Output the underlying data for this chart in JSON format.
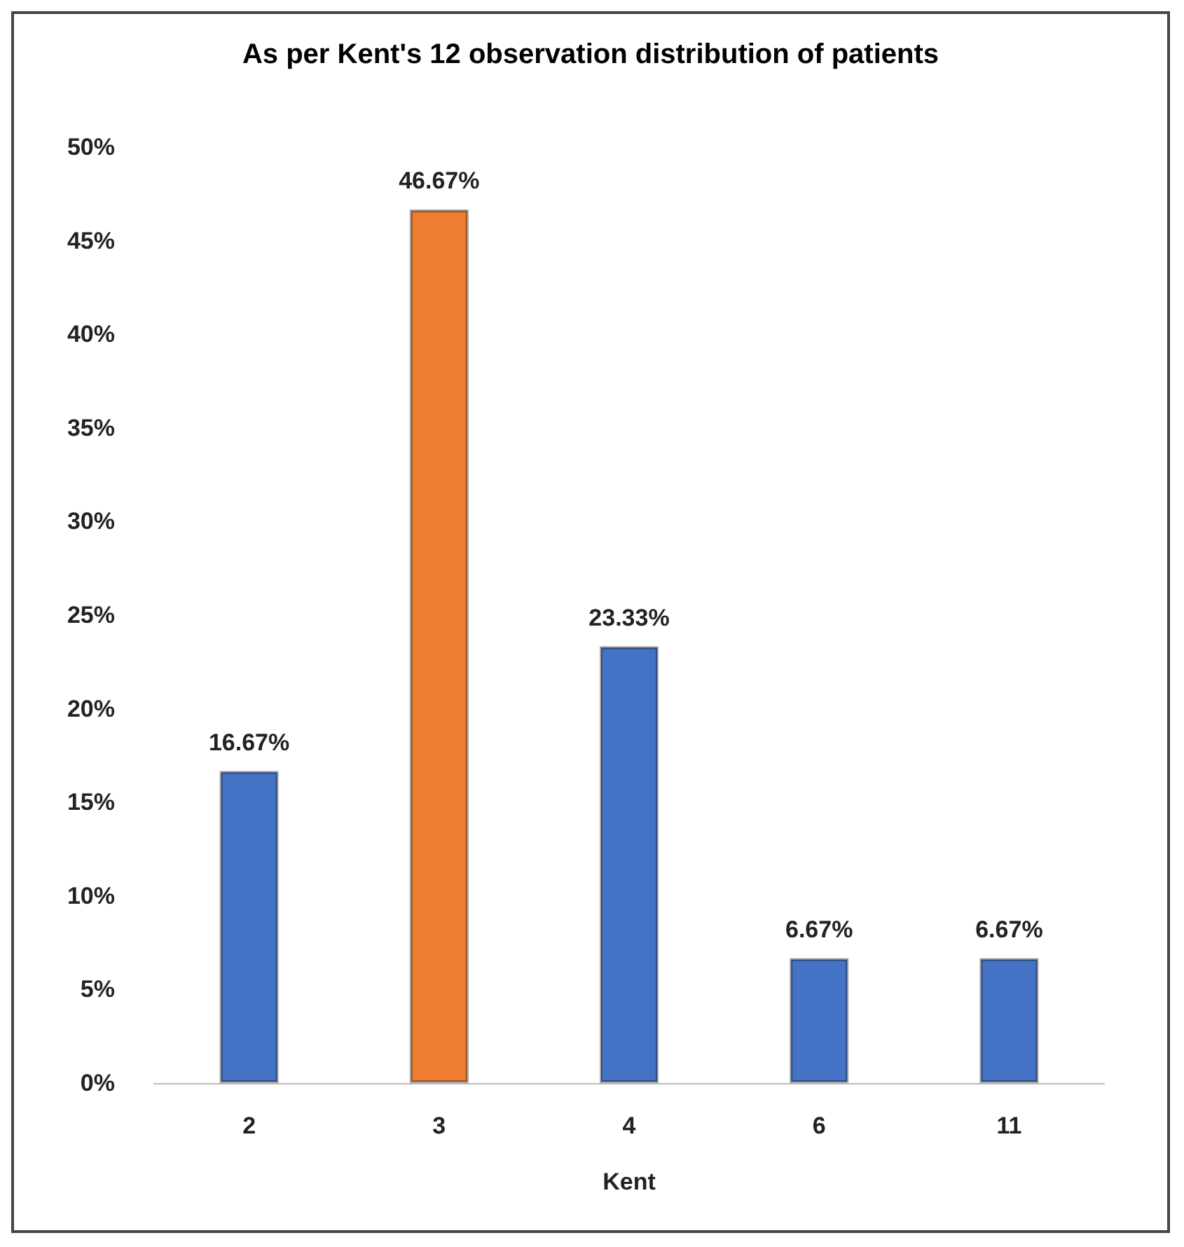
{
  "chart_data": {
    "type": "bar",
    "title": "As per Kent's 12 observation distribution of patients",
    "xlabel": "Kent",
    "categories": [
      "2",
      "3",
      "4",
      "6",
      "11"
    ],
    "values": [
      16.67,
      46.67,
      23.33,
      6.67,
      6.67
    ],
    "colors": [
      "#4472c4",
      "#ed7d31",
      "#4472c4",
      "#4472c4",
      "#4472c4"
    ],
    "value_labels": [
      "16.67%",
      "46.67%",
      "23.33%",
      "6.67%",
      "6.67%"
    ],
    "ylim": [
      0,
      50
    ],
    "yticks": [
      {
        "value": 0,
        "label": "0%"
      },
      {
        "value": 5,
        "label": "5%"
      },
      {
        "value": 10,
        "label": "10%"
      },
      {
        "value": 15,
        "label": "15%"
      },
      {
        "value": 20,
        "label": "20%"
      },
      {
        "value": 25,
        "label": "25%"
      },
      {
        "value": 30,
        "label": "30%"
      },
      {
        "value": 35,
        "label": "35%"
      },
      {
        "value": 40,
        "label": "40%"
      },
      {
        "value": 45,
        "label": "45%"
      },
      {
        "value": 50,
        "label": "50%"
      }
    ],
    "grid": false
  }
}
